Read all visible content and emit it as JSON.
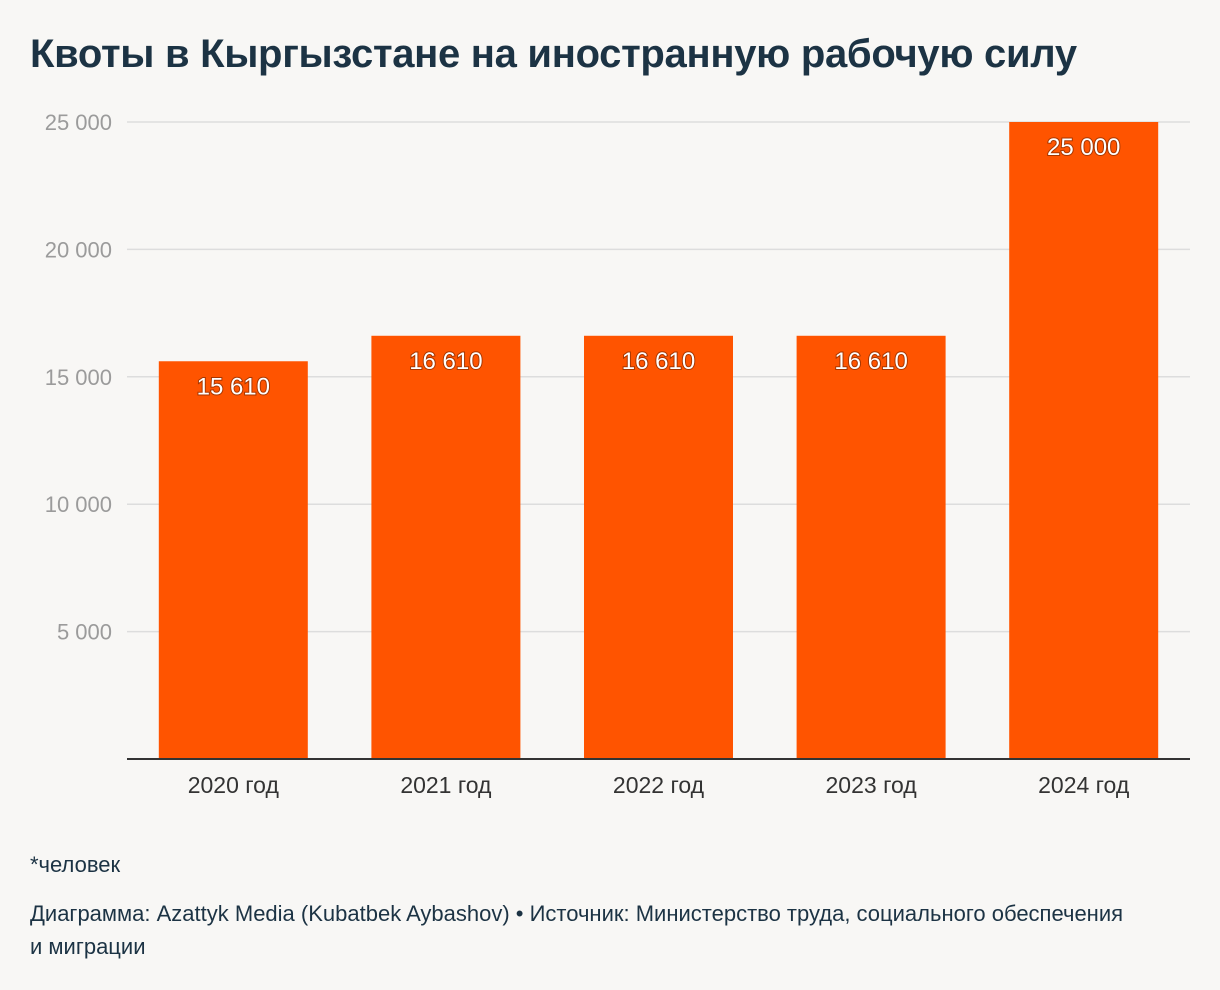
{
  "colors": {
    "background": "#f8f7f5",
    "bar": "#ff5400",
    "title": "#1c3344",
    "text": "#1c3344",
    "tick": "#9b9b9b",
    "grid": "#dddddd",
    "axis": "#333333"
  },
  "chart_data": {
    "type": "bar",
    "title": "Квоты в Кыргызстане на иностранную рабочую силу",
    "xlabel": "",
    "ylabel": "",
    "ylim": [
      0,
      25000
    ],
    "yticks": [
      5000,
      10000,
      15000,
      20000,
      25000
    ],
    "ytick_labels": [
      "5 000",
      "10 000",
      "15 000",
      "20 000",
      "25 000"
    ],
    "grid": true,
    "categories": [
      "2020 год",
      "2021 год",
      "2022 год",
      "2023 год",
      "2024 год"
    ],
    "values": [
      15610,
      16610,
      16610,
      16610,
      25000
    ],
    "value_labels": [
      "15 610",
      "16 610",
      "16 610",
      "16 610",
      "25 000"
    ]
  },
  "footnote": "*человек",
  "credits": "Диаграмма: Azattyk Media (Kubatbek Aybashov) • Источник: Министерство труда, социального обеспечения и миграции"
}
